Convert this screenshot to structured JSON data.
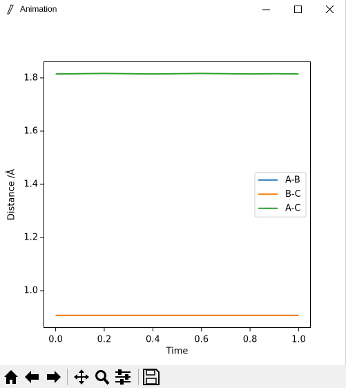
{
  "window": {
    "title": "Animation"
  },
  "chart_data": {
    "type": "line",
    "x": [
      0,
      0.1,
      0.2,
      0.3,
      0.4,
      0.5,
      0.6,
      0.7,
      0.8,
      0.9,
      1
    ],
    "series": [
      {
        "name": "A-B",
        "color": "#1f77b4",
        "values": [
          0.907,
          0.907,
          0.907,
          0.907,
          0.907,
          0.907,
          0.907,
          0.907,
          0.907,
          0.907,
          0.907
        ]
      },
      {
        "name": "B-C",
        "color": "#ff7f0e",
        "values": [
          0.907,
          0.907,
          0.907,
          0.907,
          0.907,
          0.907,
          0.907,
          0.907,
          0.907,
          0.907,
          0.907
        ]
      },
      {
        "name": "A-C",
        "color": "#2ca02c",
        "values": [
          1.815,
          1.816,
          1.817,
          1.816,
          1.815,
          1.816,
          1.817,
          1.816,
          1.815,
          1.816,
          1.815
        ]
      }
    ],
    "xlabel": "Time",
    "ylabel": "Distance /Å",
    "xlim": [
      -0.05,
      1.05
    ],
    "xticks": [
      {
        "value": 0,
        "label": "0.0"
      },
      0.2,
      0.4,
      0.6,
      0.8,
      {
        "value": 1,
        "label": "1.0"
      }
    ],
    "ylim": [
      0.86,
      1.862
    ],
    "yticks": [
      {
        "value": 1,
        "label": "1.0"
      },
      1.2,
      1.4,
      1.6,
      1.8
    ],
    "grid": false,
    "legend": "center right"
  }
}
